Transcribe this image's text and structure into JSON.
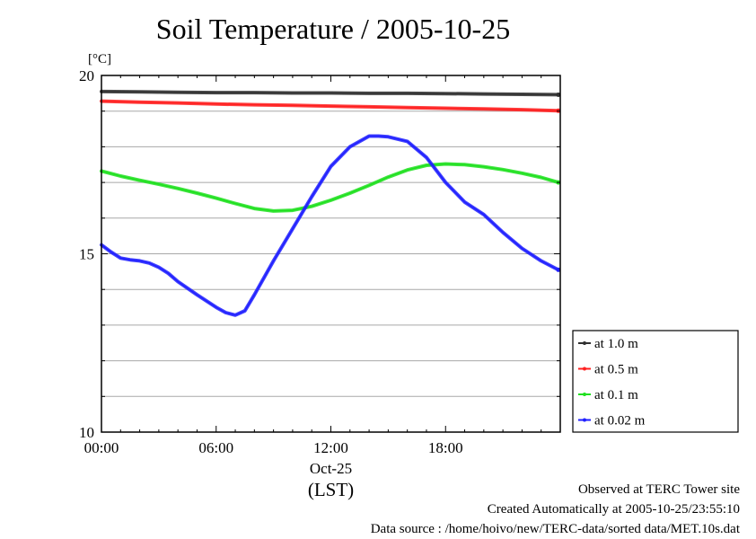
{
  "chart_data": {
    "type": "line",
    "title": "Soil Temperature / 2005-10-25",
    "ylabel": "[°C]",
    "xlabel": "(LST)",
    "x_date_label": "Oct-25",
    "ylim": [
      10,
      20
    ],
    "xlim": [
      0,
      24
    ],
    "y_ticks": [
      "10",
      "15",
      "20"
    ],
    "x_ticks": [
      "00:00",
      "06:00",
      "12:00",
      "18:00"
    ],
    "grid": true,
    "legend_position": "right-lower",
    "series": [
      {
        "name": "at 1.0 m",
        "color": "#303030",
        "x": [
          0,
          2,
          4,
          6,
          8,
          10,
          12,
          14,
          16,
          18,
          20,
          22,
          23.9
        ],
        "values": [
          19.55,
          19.54,
          19.53,
          19.52,
          19.52,
          19.51,
          19.51,
          19.5,
          19.5,
          19.49,
          19.48,
          19.47,
          19.46
        ]
      },
      {
        "name": "at 0.5 m",
        "color": "#ff2020",
        "x": [
          0,
          2,
          4,
          6,
          8,
          10,
          12,
          14,
          16,
          18,
          20,
          22,
          23.9
        ],
        "values": [
          19.28,
          19.25,
          19.23,
          19.2,
          19.18,
          19.16,
          19.14,
          19.12,
          19.1,
          19.08,
          19.06,
          19.04,
          19.01
        ]
      },
      {
        "name": "at 0.1 m",
        "color": "#20e020",
        "x": [
          0,
          1,
          2,
          3,
          4,
          5,
          6,
          7,
          8,
          9,
          10,
          11,
          12,
          13,
          14,
          15,
          16,
          17,
          18,
          19,
          20,
          21,
          22,
          23,
          23.9
        ],
        "values": [
          17.32,
          17.18,
          17.06,
          16.95,
          16.83,
          16.7,
          16.56,
          16.41,
          16.27,
          16.2,
          16.22,
          16.33,
          16.5,
          16.7,
          16.92,
          17.15,
          17.35,
          17.48,
          17.52,
          17.5,
          17.44,
          17.36,
          17.26,
          17.14,
          17.0
        ]
      },
      {
        "name": "at 0.02 m",
        "color": "#2020ff",
        "x": [
          0,
          0.5,
          1,
          1.5,
          2,
          2.5,
          3,
          3.5,
          4,
          5,
          6,
          6.5,
          7,
          7.5,
          8,
          9,
          10,
          11,
          12,
          13,
          14,
          14.5,
          15,
          16,
          17,
          18,
          19,
          20,
          21,
          22,
          23,
          23.9
        ],
        "values": [
          15.25,
          15.05,
          14.88,
          14.83,
          14.8,
          14.74,
          14.62,
          14.45,
          14.22,
          13.85,
          13.5,
          13.35,
          13.28,
          13.4,
          13.85,
          14.8,
          15.7,
          16.6,
          17.45,
          18.0,
          18.3,
          18.3,
          18.28,
          18.15,
          17.7,
          17.0,
          16.45,
          16.1,
          15.6,
          15.15,
          14.8,
          14.55
        ]
      }
    ]
  },
  "footer": {
    "line1": "Observed at TERC Tower site",
    "line2": "Created Automatically at 2005-10-25/23:55:10",
    "line3": "Data source : /home/hoivo/new/TERC-data/sorted data/MET.10s.dat"
  }
}
